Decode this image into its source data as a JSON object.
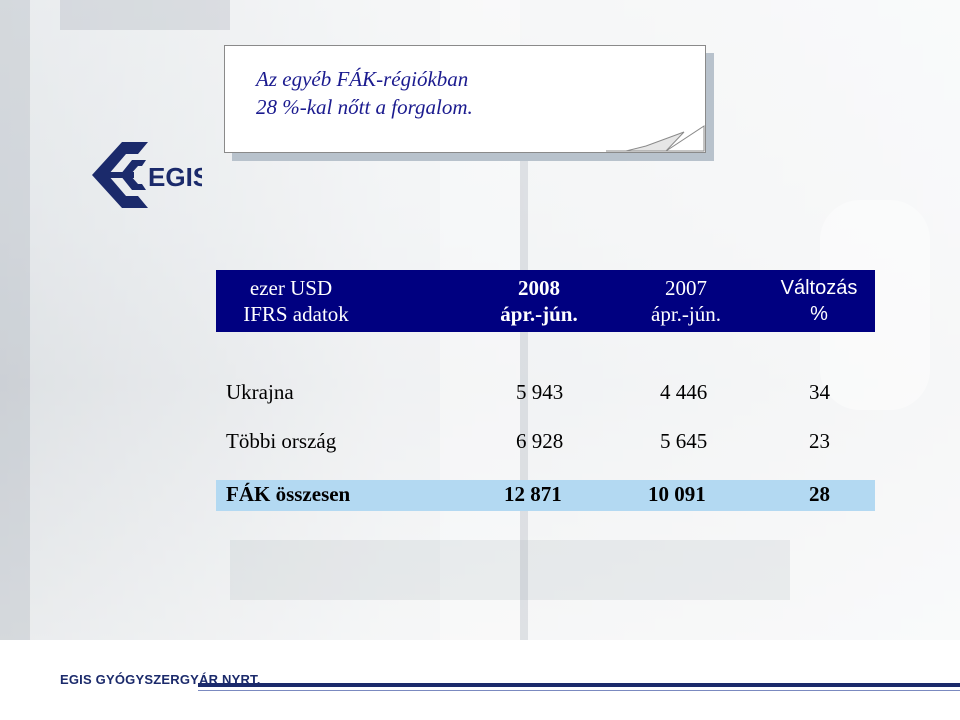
{
  "callout": {
    "line1": "Az egyéb FÁK-régiókban",
    "line2": "28 %-kal nőtt a forgalom."
  },
  "logo": {
    "text": "EGIS",
    "color": "#1b2a6b"
  },
  "table": {
    "header": {
      "label_line1": "ezer USD",
      "label_line2": "IFRS adatok",
      "col1_line1": "2008",
      "col1_line2": "ápr.-jún.",
      "col2_line1": "2007",
      "col2_line2": "ápr.-jún.",
      "col3_line1": "Változás",
      "col3_line2": "%"
    },
    "rows": [
      {
        "label": "Ukrajna",
        "v2008": "5 943",
        "v2007": "4 446",
        "change": "34"
      },
      {
        "label": "Többi ország",
        "v2008": "6 928",
        "v2007": "5 645",
        "change": "23"
      }
    ],
    "total": {
      "label": "FÁK összesen",
      "v2008": "12 871",
      "v2007": "10 091",
      "change": "28"
    },
    "header_color": "#000080",
    "total_color": "#b3d9f2"
  },
  "footer": {
    "company": "EGIS GYÓGYSZERGYÁR NYRT."
  }
}
